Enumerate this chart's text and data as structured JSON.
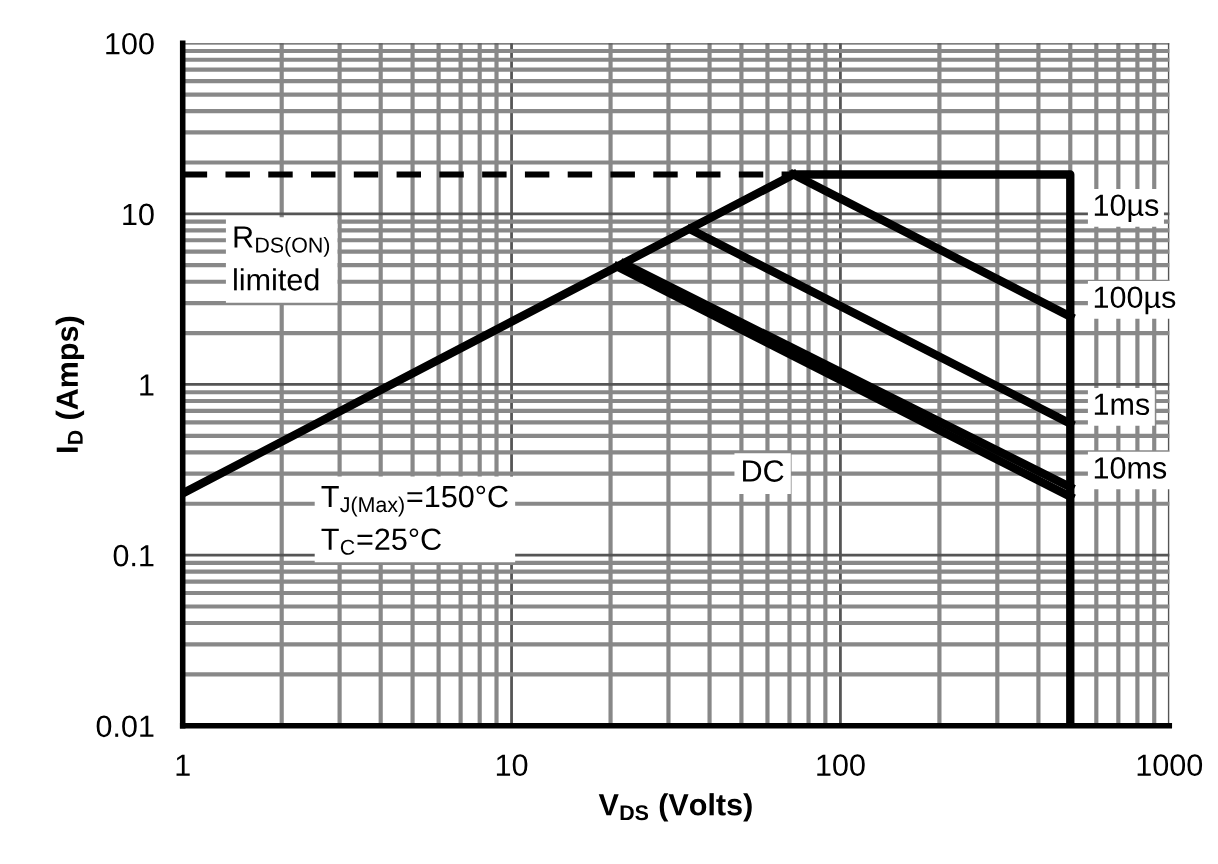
{
  "chart_data": {
    "type": "line",
    "xlabel": "V$_{DS}$ (Volts)",
    "ylabel": "I$_{D}$ (Amps)",
    "log": "xy",
    "xlim": [
      1,
      1000
    ],
    "ylim": [
      0.01,
      100
    ],
    "xticks": [
      1,
      10,
      100,
      1000
    ],
    "yticks": [
      0.01,
      0.1,
      1,
      10,
      100
    ],
    "grid": true,
    "series": [
      {
        "color": "#000000",
        "x": [
          1,
          72
        ],
        "values": [
          0.23,
          17
        ]
      },
      {
        "color": "#000000",
        "x": [
          1,
          72
        ],
        "values": [
          17,
          17
        ],
        "line_style": "dashed"
      },
      {
        "name": "10µs",
        "color": "#000000",
        "x": [
          72,
          500,
          500
        ],
        "values": [
          17,
          17,
          0.01
        ]
      },
      {
        "name": "100µs",
        "color": "#000000",
        "x": [
          72,
          500
        ],
        "values": [
          17,
          2.5
        ]
      },
      {
        "name": "1ms",
        "color": "#000000",
        "x": [
          35,
          500
        ],
        "values": [
          8.1,
          0.59
        ]
      },
      {
        "name": "10ms",
        "color": "#000000",
        "x": [
          22,
          500
        ],
        "values": [
          5.1,
          0.25
        ]
      },
      {
        "color": "#000000",
        "x": [
          21,
          500
        ],
        "values": [
          4.9,
          0.22
        ]
      }
    ],
    "annotations": [
      {
        "text": "DC",
        "x": 58,
        "y": 0.3
      },
      "R$_{DS(ON)}$\nlimited",
      "T$_{J(Max)}$=150°C\nT$_{C}$=25°C"
    ]
  }
}
